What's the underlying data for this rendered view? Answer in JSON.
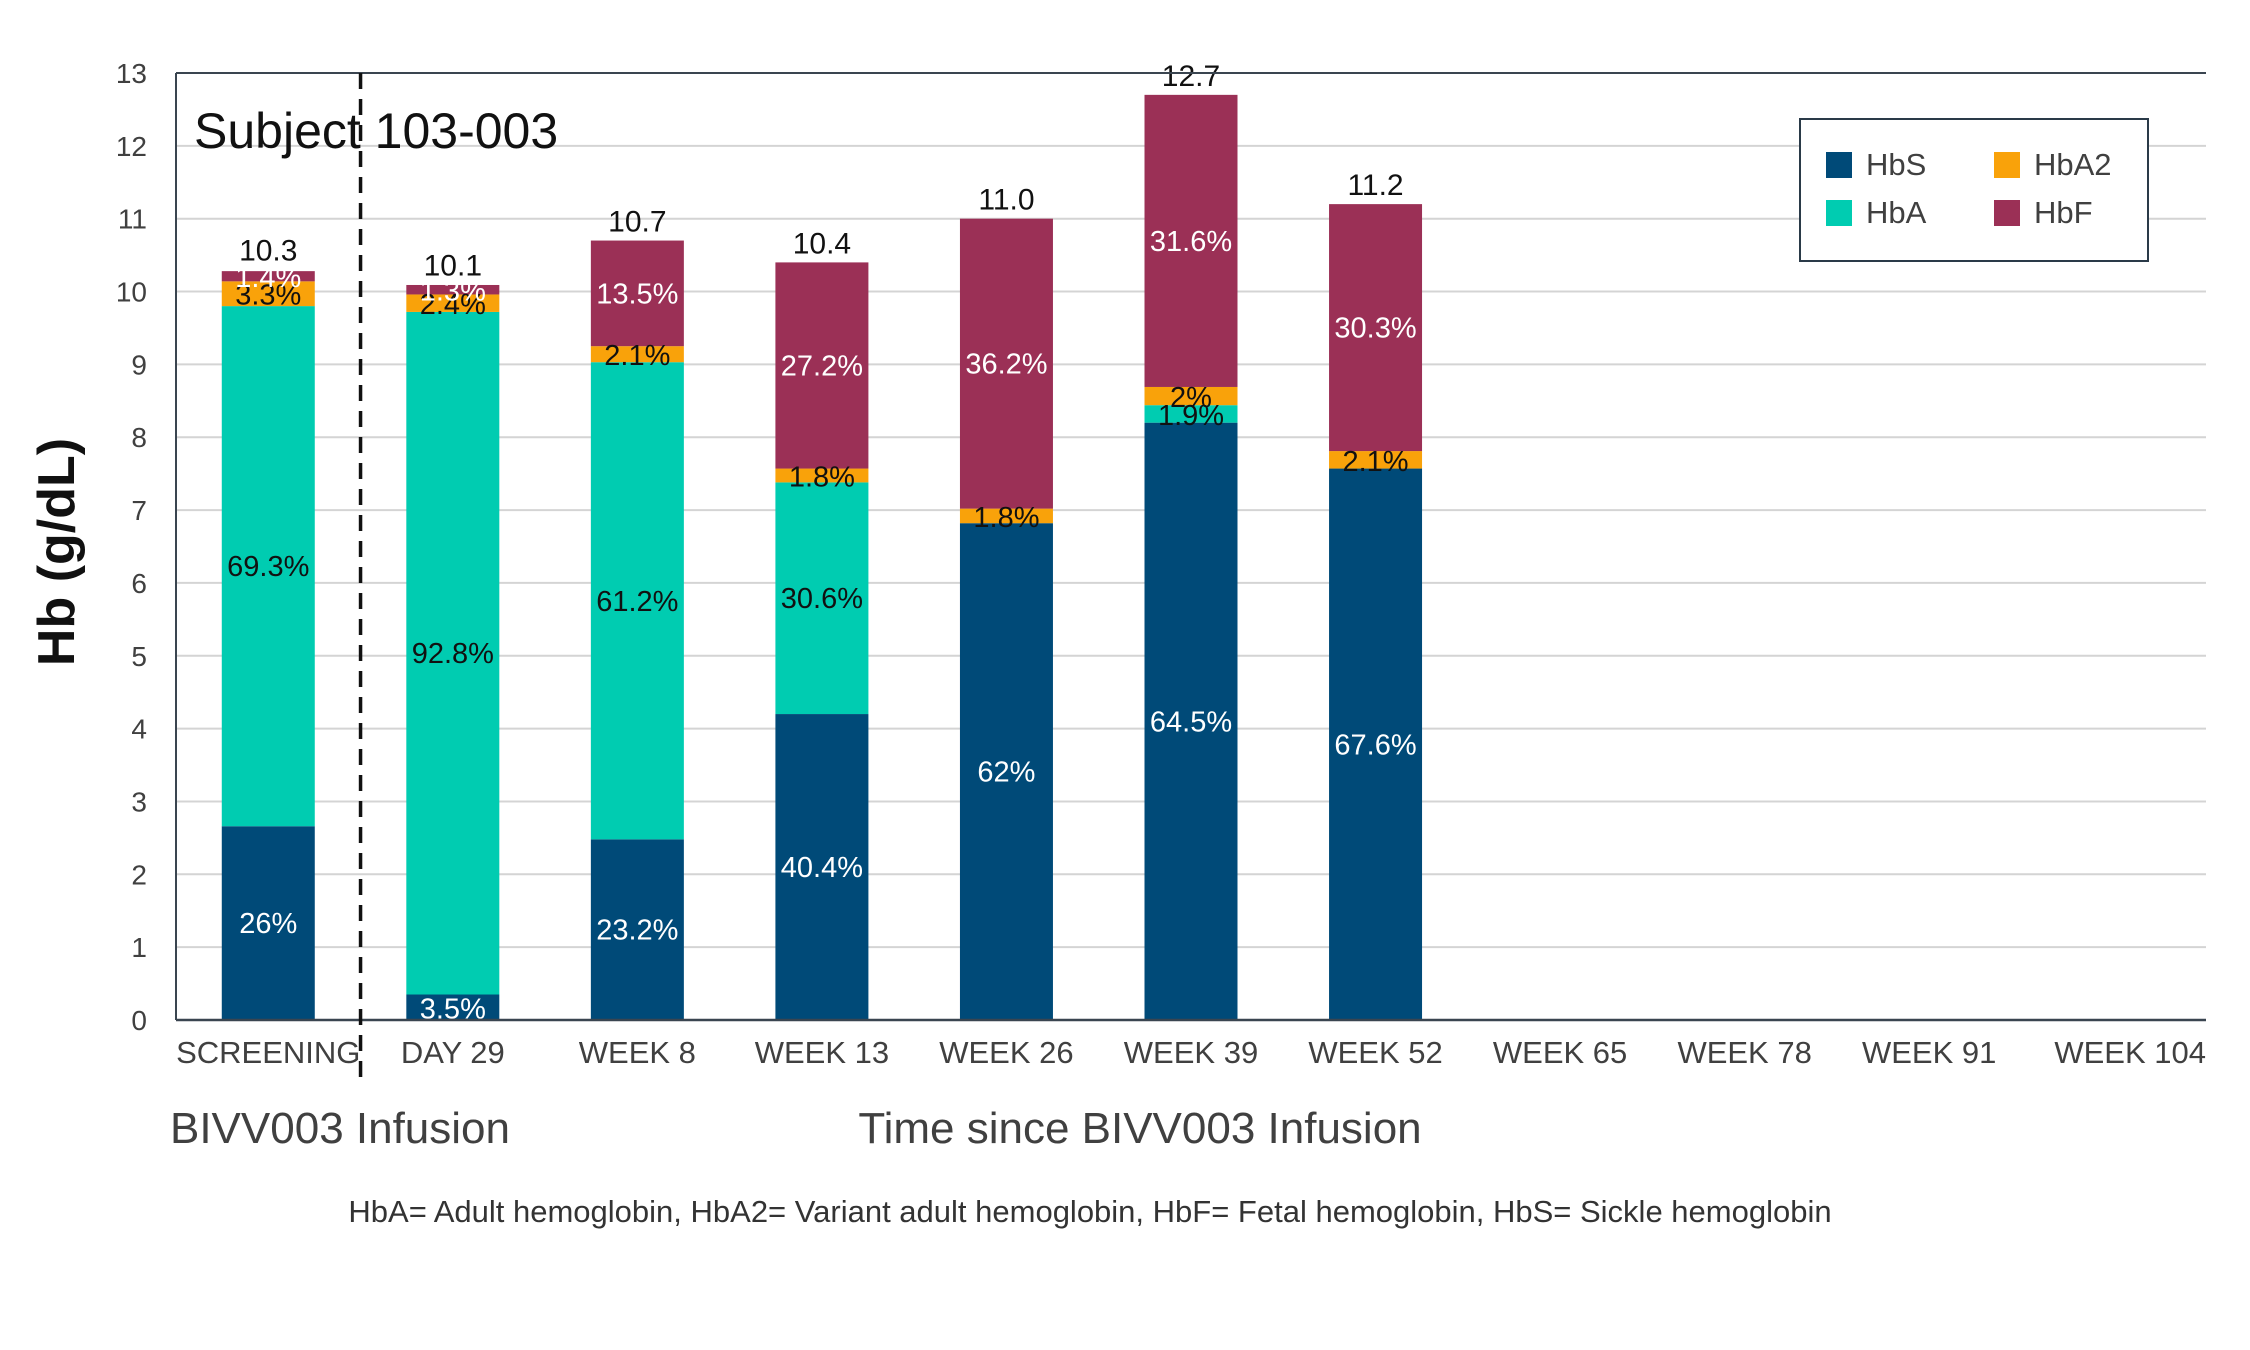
{
  "chart_data": {
    "type": "bar",
    "stacked": true,
    "title": "Subject 103-003",
    "ylabel": "Hb (g/dL)",
    "xlabel": "Time since BIVV003 Infusion",
    "left_xlabel": "BIVV003 Infusion",
    "ylim": [
      0,
      13
    ],
    "yticks": [
      0,
      1,
      2,
      3,
      4,
      5,
      6,
      7,
      8,
      9,
      10,
      11,
      12,
      13
    ],
    "grid": true,
    "categories": [
      "SCREENING",
      "DAY 29",
      "WEEK 8",
      "WEEK 13",
      "WEEK 26",
      "WEEK 39",
      "WEEK 52",
      "WEEK 65",
      "WEEK 78",
      "WEEK 91",
      "WEEK 104"
    ],
    "totals": [
      10.3,
      10.1,
      10.7,
      10.4,
      11.0,
      12.7,
      11.2,
      null,
      null,
      null,
      null
    ],
    "total_labels": [
      "10.3",
      "10.1",
      "10.7",
      "10.4",
      "11.0",
      "12.7",
      "11.2",
      "",
      "",
      "",
      ""
    ],
    "series": [
      {
        "name": "HbS",
        "color": "#004A78",
        "label_color": "#ffffff",
        "values": [
          2.66,
          0.35,
          2.48,
          4.2,
          6.82,
          8.2,
          7.57,
          null,
          null,
          null,
          null
        ],
        "labels": [
          "26%",
          "3.5%",
          "23.2%",
          "40.4%",
          "62%",
          "64.5%",
          "67.6%",
          "",
          "",
          "",
          ""
        ]
      },
      {
        "name": "HbA",
        "color": "#00CCB1",
        "label_color": "#111111",
        "values": [
          7.14,
          9.37,
          6.55,
          3.18,
          0,
          0.24,
          0,
          null,
          null,
          null,
          null
        ],
        "labels": [
          "69.3%",
          "92.8%",
          "61.2%",
          "30.6%",
          "",
          "1.9%",
          "",
          "",
          "",
          "",
          ""
        ]
      },
      {
        "name": "HbA2",
        "color": "#F9A20A",
        "label_color": "#111111",
        "values": [
          0.34,
          0.24,
          0.22,
          0.19,
          0.2,
          0.25,
          0.24,
          null,
          null,
          null,
          null
        ],
        "labels": [
          "3.3%",
          "2.4%",
          "2.1%",
          "1.8%",
          "1.8%",
          "2%",
          "2.1%",
          "",
          "",
          "",
          ""
        ]
      },
      {
        "name": "HbF",
        "color": "#9B3056",
        "label_color": "#ffffff",
        "values": [
          0.14,
          0.13,
          1.45,
          2.83,
          3.98,
          4.01,
          3.39,
          null,
          null,
          null,
          null
        ],
        "labels": [
          "1.4%",
          "1.3%",
          "13.5%",
          "27.2%",
          "36.2%",
          "31.6%",
          "30.3%",
          "",
          "",
          "",
          ""
        ]
      }
    ],
    "legend": {
      "position": "top-right",
      "entries": [
        "HbS",
        "HbA2",
        "HbA",
        "HbF"
      ]
    },
    "footnote": "HbA= Adult hemoglobin,  HbA2= Variant adult hemoglobin, HbF= Fetal hemoglobin, HbS= Sickle hemoglobin"
  }
}
